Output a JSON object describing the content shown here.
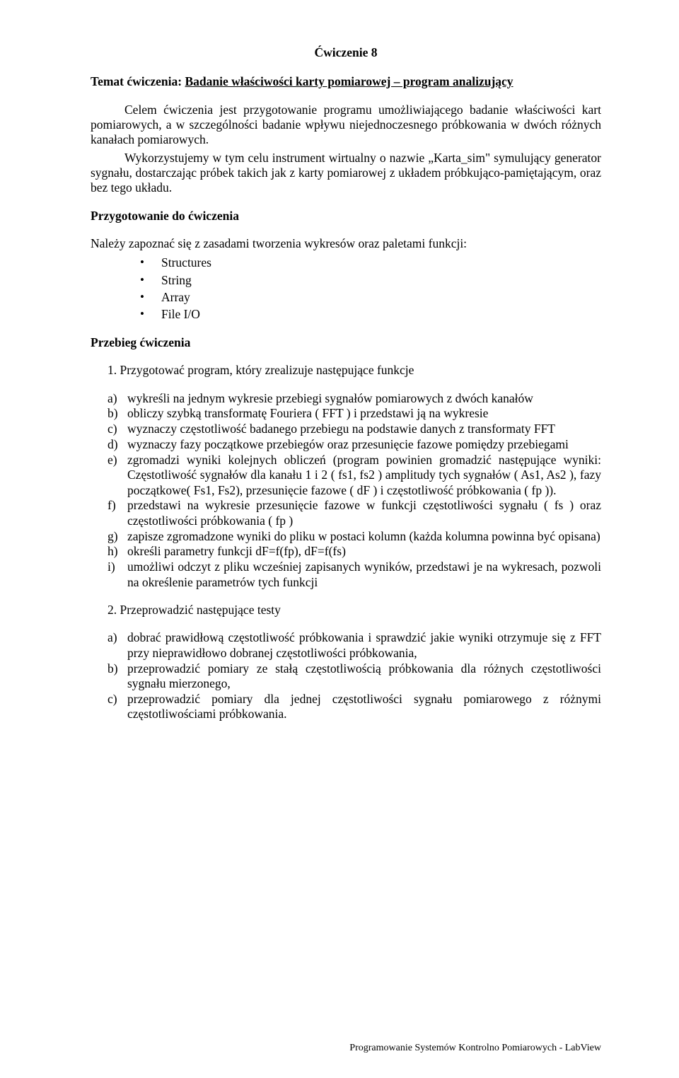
{
  "title": "Ćwiczenie 8",
  "topic": {
    "label": "Temat ćwiczenia: ",
    "text": "Badanie właściwości karty pomiarowej – program analizujący"
  },
  "intro1": "Celem ćwiczenia jest przygotowanie programu umożliwiającego badanie właściwości kart pomiarowych, a w szczególności badanie wpływu niejednoczesnego próbkowania  w dwóch różnych kanałach pomiarowych.",
  "intro2": "Wykorzystujemy w tym celu instrument wirtualny o nazwie „Karta_sim\" symulujący generator sygnału, dostarczając próbek takich jak z karty pomiarowej z układem próbkująco-pamiętającym, oraz bez tego układu.",
  "prep_head": "Przygotowanie do ćwiczenia",
  "prep_line": "Należy zapoznać się z zasadami tworzenia wykresów oraz paletami funkcji:",
  "bullets": [
    "Structures",
    "String",
    "Array",
    "File I/O"
  ],
  "run_head": "Przebieg ćwiczenia",
  "task1_num": "1. Przygotować program, który zrealizuje następujące funkcje",
  "list1": [
    {
      "mk": "a)",
      "t": "wykreśli na jednym wykresie przebiegi sygnałów pomiarowych z dwóch kanałów"
    },
    {
      "mk": "b)",
      "t": "obliczy szybką transformatę Fouriera ( FFT ) i przedstawi ją na wykresie"
    },
    {
      "mk": "c)",
      "t": "wyznaczy częstotliwość badanego przebiegu na podstawie danych z transformaty FFT"
    },
    {
      "mk": "d)",
      "t": "wyznaczy fazy początkowe przebiegów oraz przesunięcie fazowe pomiędzy przebiegami"
    },
    {
      "mk": "e)",
      "t": "zgromadzi wyniki kolejnych obliczeń (program powinien gromadzić następujące wyniki: Częstotliwość sygnałów dla kanału 1 i 2 ( fs1, fs2 ) amplitudy tych sygnałów ( As1, As2 ), fazy początkowe( Fs1, Fs2), przesunięcie fazowe ( dF ) i częstotliwość próbkowania ( fp ))."
    },
    {
      "mk": "f)",
      "t": "przedstawi na wykresie przesunięcie fazowe w funkcji częstotliwości sygnału ( fs ) oraz częstotliwości próbkowania ( fp )"
    },
    {
      "mk": "g)",
      "t": "zapisze zgromadzone wyniki do pliku w postaci kolumn (każda kolumna powinna być opisana)"
    },
    {
      "mk": "h)",
      "t": "określi parametry funkcji dF=f(fp), dF=f(fs)"
    },
    {
      "mk": "i)",
      "t": "umożliwi odczyt z pliku wcześniej zapisanych wyników, przedstawi je na wykresach, pozwoli na określenie parametrów tych funkcji"
    }
  ],
  "task2_num": "2. Przeprowadzić następujące testy",
  "list2": [
    {
      "mk": "a)",
      "t": "dobrać prawidłową częstotliwość próbkowania i sprawdzić jakie wyniki otrzymuje się z FFT przy nieprawidłowo dobranej częstotliwości próbkowania,"
    },
    {
      "mk": "b)",
      "t": "przeprowadzić pomiary ze stałą częstotliwością próbkowania  dla różnych częstotliwości sygnału mierzonego,"
    },
    {
      "mk": "c)",
      "t": "przeprowadzić pomiary dla jednej częstotliwości sygnału pomiarowego z różnymi częstotliwościami próbkowania."
    }
  ],
  "footer": "Programowanie Systemów Kontrolno Pomiarowych - LabView"
}
